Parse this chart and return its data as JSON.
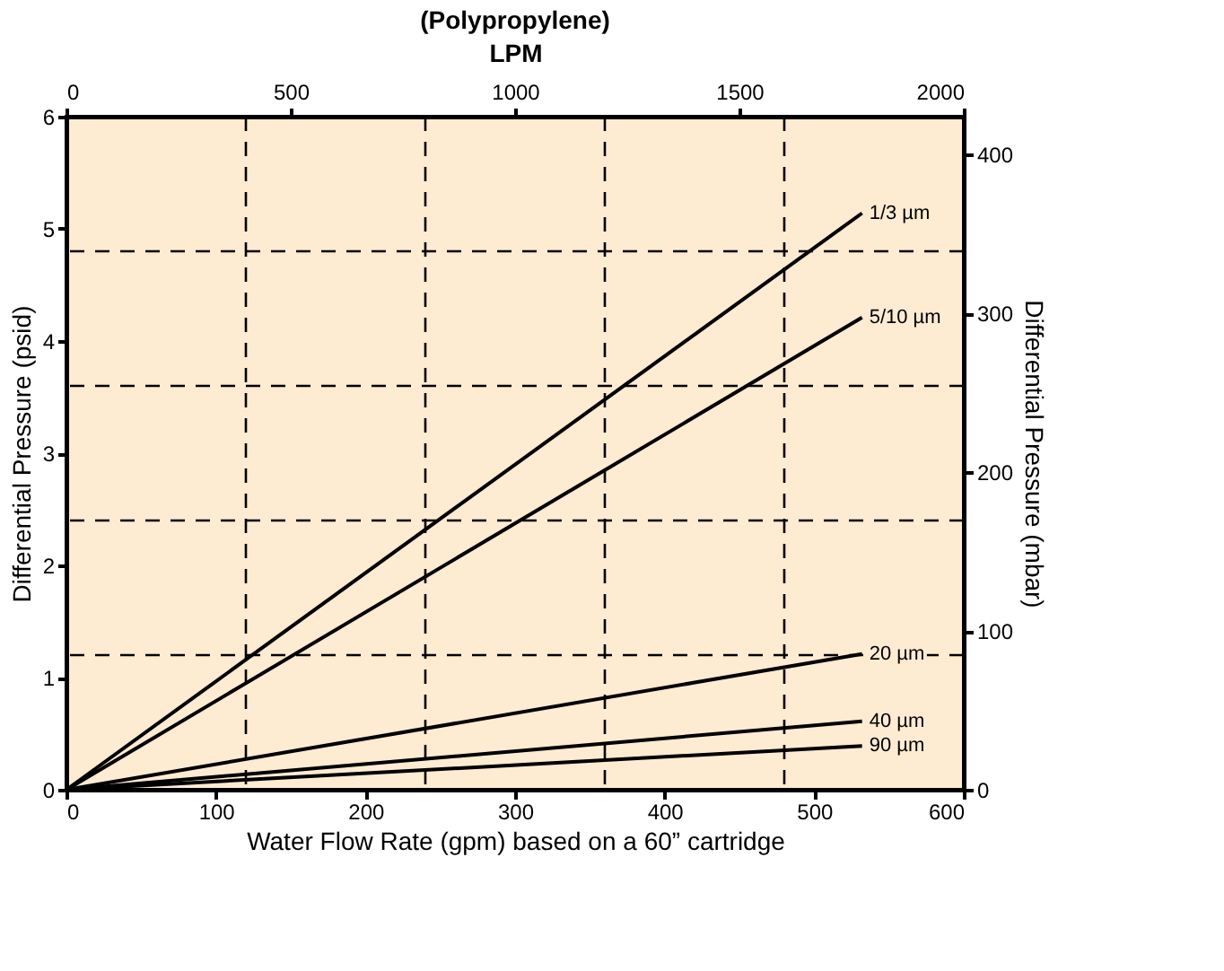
{
  "chart_data": {
    "type": "line",
    "title": "(Polypropylene)",
    "x": [
      0,
      532
    ],
    "series": [
      {
        "name": "1/3 µm",
        "values": [
          0,
          5.14
        ],
        "color": "#000000"
      },
      {
        "name": "5/10 µm",
        "values": [
          0,
          4.21
        ],
        "color": "#000000"
      },
      {
        "name": "20 µm",
        "values": [
          0,
          1.21
        ],
        "color": "#000000"
      },
      {
        "name": "40 µm",
        "values": [
          0,
          0.61
        ],
        "color": "#000000"
      },
      {
        "name": "90 µm",
        "values": [
          0,
          0.39
        ],
        "color": "#000000"
      }
    ],
    "xlabel": "Water Flow Rate (gpm) based on a 60” cartridge",
    "ylabel": "Differential Pressure (psid)",
    "y2label": "Differential Pressure (mbar)",
    "x2label": "LPM",
    "xlim": [
      0,
      600
    ],
    "xticks": [
      0,
      100,
      200,
      300,
      400,
      500,
      600
    ],
    "ylim": [
      0,
      6
    ],
    "yticks": [
      0,
      1,
      2,
      3,
      4,
      5,
      6
    ],
    "x2lim": [
      0,
      2000
    ],
    "x2ticks": [
      0,
      500,
      1000,
      1500,
      2000
    ],
    "y2lim": [
      0,
      424
    ],
    "y2ticks": [
      0,
      100,
      200,
      300,
      400
    ],
    "ref_lines": [
      {
        "axis": "x",
        "value": 120,
        "line_style": "dashed",
        "color": "#000000"
      },
      {
        "axis": "x",
        "value": 240,
        "line_style": "dashed",
        "color": "#000000"
      },
      {
        "axis": "x",
        "value": 360,
        "line_style": "dashed",
        "color": "#000000"
      },
      {
        "axis": "x",
        "value": 480,
        "line_style": "dashed",
        "color": "#000000"
      },
      {
        "axis": "y",
        "value": 1.2,
        "line_style": "dashed",
        "color": "#000000"
      },
      {
        "axis": "y",
        "value": 2.4,
        "line_style": "dashed",
        "color": "#000000"
      },
      {
        "axis": "y",
        "value": 3.6,
        "line_style": "dashed",
        "color": "#000000"
      },
      {
        "axis": "y",
        "value": 4.8,
        "line_style": "dashed",
        "color": "#000000"
      }
    ],
    "grid": false,
    "marker": "none",
    "line_style": "solid"
  }
}
